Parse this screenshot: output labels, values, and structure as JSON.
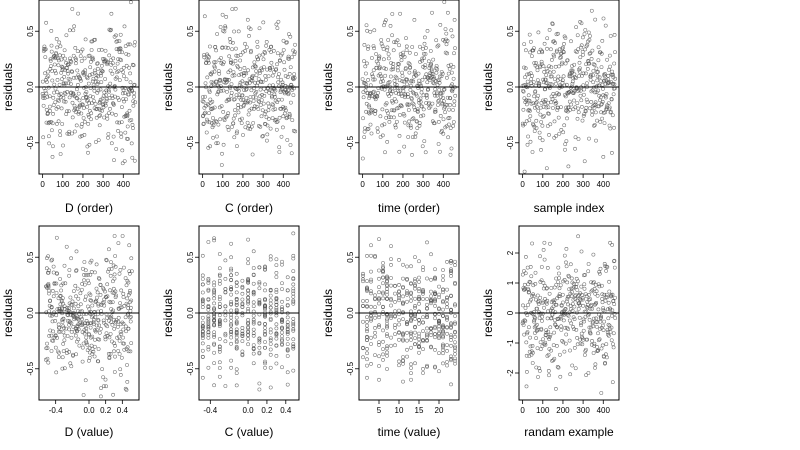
{
  "chart_data": [
    {
      "type": "scatter",
      "xlabel": "D (order)",
      "ylabel": "residuals",
      "xticks": [
        0,
        100,
        200,
        300,
        400
      ],
      "xtick_labels": [
        "0",
        "100",
        "200",
        "300",
        "400"
      ],
      "yticks": [
        -0.5,
        0,
        0.5
      ],
      "ytick_labels": [
        "-0.5",
        "0.0",
        "0.5"
      ],
      "xlim": [
        -18,
        478
      ],
      "ylim": [
        -0.78,
        0.78
      ],
      "n_points": 460,
      "reference_line": 0,
      "pattern": "x_is_row_index_residual_scatter_around_zero"
    },
    {
      "type": "scatter",
      "xlabel": "C (order)",
      "ylabel": "residuals",
      "xticks": [
        0,
        100,
        200,
        300,
        400
      ],
      "xtick_labels": [
        "0",
        "100",
        "200",
        "300",
        "400"
      ],
      "yticks": [
        -0.5,
        0,
        0.5
      ],
      "ytick_labels": [
        "-0.5",
        "0.0",
        "0.5"
      ],
      "xlim": [
        -18,
        478
      ],
      "ylim": [
        -0.78,
        0.78
      ],
      "n_points": 460,
      "reference_line": 0,
      "pattern": "x_is_row_index_residual_scatter_around_zero"
    },
    {
      "type": "scatter",
      "xlabel": "time (order)",
      "ylabel": "residuals",
      "xticks": [
        0,
        100,
        200,
        300,
        400
      ],
      "xtick_labels": [
        "0",
        "100",
        "200",
        "300",
        "400"
      ],
      "yticks": [
        -0.5,
        0,
        0.5
      ],
      "ytick_labels": [
        "-0.5",
        "0.0",
        "0.5"
      ],
      "xlim": [
        -18,
        478
      ],
      "ylim": [
        -0.78,
        0.78
      ],
      "n_points": 460,
      "reference_line": 0,
      "pattern": "x_is_row_index_residual_scatter_around_zero"
    },
    {
      "type": "scatter",
      "xlabel": "sample index",
      "ylabel": "residuals",
      "xticks": [
        0,
        100,
        200,
        300,
        400
      ],
      "xtick_labels": [
        "0",
        "100",
        "200",
        "300",
        "400"
      ],
      "yticks": [
        -0.5,
        0,
        0.5
      ],
      "ytick_labels": [
        "-0.5",
        "0.0",
        "0.5"
      ],
      "xlim": [
        -18,
        478
      ],
      "ylim": [
        -0.78,
        0.78
      ],
      "n_points": 460,
      "reference_line": 0,
      "pattern": "x_is_row_index_residual_scatter_around_zero"
    },
    {
      "type": "scatter",
      "xlabel": "D (value)",
      "ylabel": "residuals",
      "xticks": [
        -0.4,
        0,
        0.2,
        0.4
      ],
      "xtick_labels": [
        "-0.4",
        "0.0",
        "0.2",
        "0.4"
      ],
      "yticks": [
        -0.5,
        0,
        0.5
      ],
      "ytick_labels": [
        "-0.5",
        "0.0",
        "0.5"
      ],
      "xlim": [
        -0.6,
        0.6
      ],
      "ylim": [
        -0.78,
        0.78
      ],
      "n_points": 460,
      "reference_line": 0,
      "pattern": "x_is_predictor_value_residual_scatter_around_zero"
    },
    {
      "type": "scatter",
      "xlabel": "C (value)",
      "ylabel": "residuals",
      "xticks": [
        -0.4,
        0,
        0.2,
        0.4
      ],
      "xtick_labels": [
        "-0.4",
        "0.0",
        "0.2",
        "0.4"
      ],
      "yticks": [
        -0.5,
        0,
        0.5
      ],
      "ytick_labels": [
        "-0.5",
        "0.0",
        "0.5"
      ],
      "xlim": [
        -0.52,
        0.54
      ],
      "ylim": [
        -0.78,
        0.78
      ],
      "n_points": 460,
      "reference_line": 0,
      "pattern": "x_takes_discrete_values_residual_columns_around_zero"
    },
    {
      "type": "scatter",
      "xlabel": "time (value)",
      "ylabel": "residuals",
      "xticks": [
        5,
        10,
        15,
        20
      ],
      "xtick_labels": [
        "5",
        "10",
        "15",
        "20"
      ],
      "yticks": [
        -0.5,
        0,
        0.5
      ],
      "ytick_labels": [
        "-0.5",
        "0.0",
        "0.5"
      ],
      "xlim": [
        0,
        25
      ],
      "ylim": [
        -0.78,
        0.78
      ],
      "n_points": 460,
      "reference_line": 0,
      "pattern": "x_takes_discrete_values_residual_columns_around_zero"
    },
    {
      "type": "scatter",
      "xlabel": "randam example",
      "ylabel": "residuals",
      "xticks": [
        0,
        100,
        200,
        300,
        400
      ],
      "xtick_labels": [
        "0",
        "100",
        "200",
        "300",
        "400"
      ],
      "yticks": [
        -2,
        -1,
        0,
        1,
        2
      ],
      "ytick_labels": [
        "-2",
        "-1",
        "0",
        "1",
        "2"
      ],
      "xlim": [
        -18,
        478
      ],
      "ylim": [
        -2.9,
        2.9
      ],
      "n_points": 460,
      "reference_line": 0,
      "pattern": "x_is_row_index_standard_normal_noise_around_zero"
    }
  ]
}
